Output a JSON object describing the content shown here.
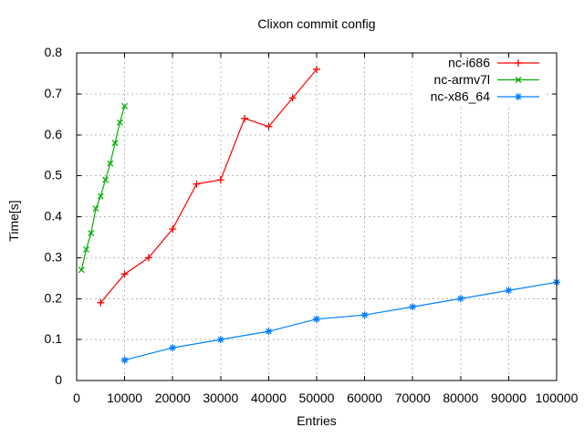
{
  "window": {
    "background": "#ffffff",
    "grid_color": "#b9b9b9",
    "axis_color": "#000000"
  },
  "chart_data": {
    "type": "line",
    "title": "Clixon commit config",
    "xlabel": "Entries",
    "ylabel": "Time[s]",
    "xlim": [
      0,
      100000
    ],
    "ylim": [
      0,
      0.8
    ],
    "grid": true,
    "legend_position": "top-right-inside",
    "xticks": {
      "values": [
        0,
        10000,
        20000,
        30000,
        40000,
        50000,
        60000,
        70000,
        80000,
        90000,
        100000
      ],
      "labels": [
        "0",
        "10000",
        "20000",
        "30000",
        "40000",
        "50000",
        "60000",
        "70000",
        "80000",
        "90000",
        "100000"
      ]
    },
    "yticks": {
      "values": [
        0,
        0.1,
        0.2,
        0.3,
        0.4,
        0.5,
        0.6,
        0.7,
        0.8
      ],
      "labels": [
        "0",
        "0.1",
        "0.2",
        "0.3",
        "0.4",
        "0.5",
        "0.6",
        "0.7",
        "0.8"
      ]
    },
    "series": [
      {
        "name": "nc-i686",
        "color": "#ff0000",
        "marker": "plus",
        "x": [
          5000,
          10000,
          15000,
          20000,
          25000,
          30000,
          35000,
          40000,
          45000,
          50000
        ],
        "y": [
          0.19,
          0.26,
          0.3,
          0.37,
          0.48,
          0.49,
          0.64,
          0.62,
          0.69,
          0.76
        ]
      },
      {
        "name": "nc-armv7l",
        "color": "#00b000",
        "marker": "cross",
        "x": [
          1000,
          2000,
          3000,
          4000,
          5000,
          6000,
          7000,
          8000,
          9000,
          10000
        ],
        "y": [
          0.27,
          0.32,
          0.36,
          0.42,
          0.45,
          0.49,
          0.53,
          0.58,
          0.63,
          0.67
        ]
      },
      {
        "name": "nc-x86_64",
        "color": "#0080ff",
        "marker": "asterisk",
        "x": [
          10000,
          20000,
          30000,
          40000,
          50000,
          60000,
          70000,
          80000,
          90000,
          100000
        ],
        "y": [
          0.05,
          0.08,
          0.1,
          0.12,
          0.15,
          0.16,
          0.18,
          0.2,
          0.22,
          0.24
        ]
      }
    ]
  }
}
